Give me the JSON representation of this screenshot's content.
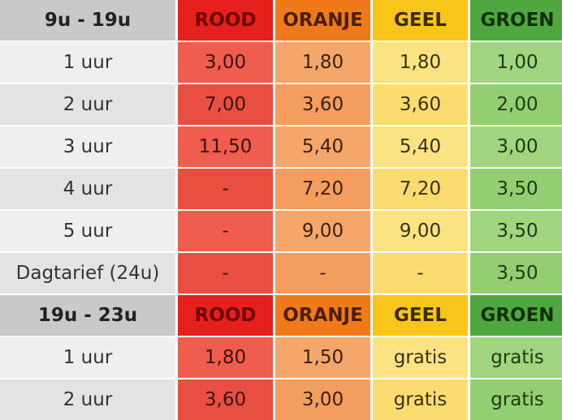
{
  "sections": [
    {
      "period": "9u - 19u",
      "zones": [
        "ROOD",
        "ORANJE",
        "GEEL",
        "GROEN"
      ],
      "rows": [
        {
          "label": "1 uur",
          "values": [
            "3,00",
            "1,80",
            "1,80",
            "1,00"
          ]
        },
        {
          "label": "2 uur",
          "values": [
            "7,00",
            "3,60",
            "3,60",
            "2,00"
          ]
        },
        {
          "label": "3 uur",
          "values": [
            "11,50",
            "5,40",
            "5,40",
            "3,00"
          ]
        },
        {
          "label": "4 uur",
          "values": [
            "-",
            "7,20",
            "7,20",
            "3,50"
          ]
        },
        {
          "label": "5 uur",
          "values": [
            "-",
            "9,00",
            "9,00",
            "3,50"
          ]
        },
        {
          "label": "Dagtarief (24u)",
          "values": [
            "-",
            "-",
            "-",
            "3,50"
          ]
        }
      ]
    },
    {
      "period": "19u - 23u",
      "zones": [
        "ROOD",
        "ORANJE",
        "GEEL",
        "GROEN"
      ],
      "rows": [
        {
          "label": "1 uur",
          "values": [
            "1,80",
            "1,50",
            "gratis",
            "gratis"
          ]
        },
        {
          "label": "2 uur",
          "values": [
            "3,60",
            "3,00",
            "gratis",
            "gratis"
          ]
        }
      ]
    }
  ],
  "colors": {
    "rood": "#e6201c",
    "oranje": "#f07a1a",
    "geel": "#f8c61a",
    "groen": "#4fa83f",
    "header_label": "#c9c9c9"
  }
}
